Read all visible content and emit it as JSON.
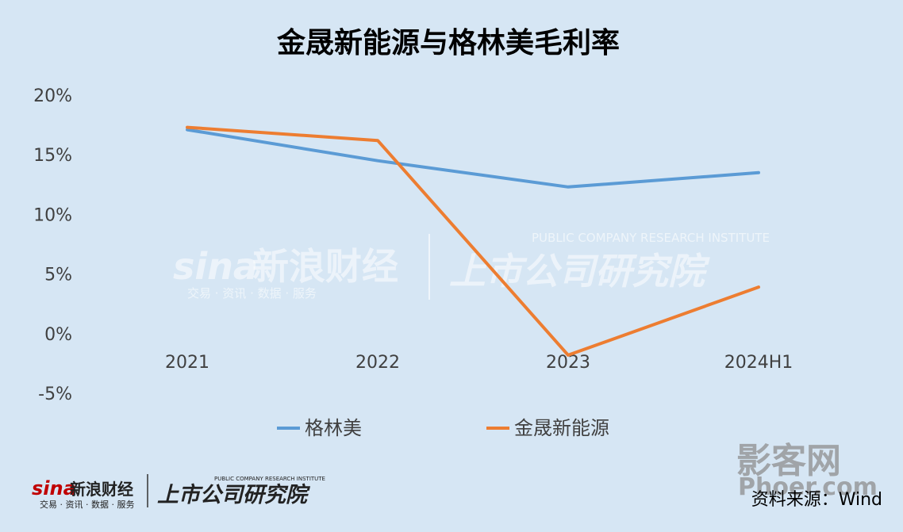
{
  "chart_data": {
    "type": "line",
    "title": "金晟新能源与格林美毛利率",
    "categories": [
      "2021",
      "2022",
      "2023",
      "2024H1"
    ],
    "yticks": [
      "20%",
      "15%",
      "10%",
      "5%",
      "0%",
      "-5%"
    ],
    "ylim": [
      -5,
      20
    ],
    "xlabel": "",
    "ylabel": "",
    "grid": false,
    "legend": "bottom",
    "series": [
      {
        "name": "格林美",
        "values": [
          17.1,
          14.5,
          12.3,
          13.5
        ],
        "color": "#5b9bd5"
      },
      {
        "name": "金晟新能源",
        "values": [
          17.3,
          16.2,
          -1.8,
          3.9
        ],
        "color": "#ed7d31"
      }
    ]
  },
  "watermark": {
    "sina": "sina",
    "sina_brand": "新浪财经",
    "sina_sub": "交易 · 资讯 · 数据 · 服务",
    "institute": "上市公司研究院",
    "institute_en": "PUBLIC COMPANY RESEARCH INSTITUTE"
  },
  "footer": {
    "sina": "sina",
    "sina_brand": "新浪财经",
    "sina_sub": "交易 · 资讯 · 数据 · 服务",
    "institute": "上市公司研究院",
    "institute_en": "PUBLIC COMPANY RESEARCH INSTITUTE",
    "source": "资料来源：Wind"
  },
  "corner_watermark": {
    "line1": "影客网",
    "line2": "Phoer.com"
  },
  "colors": {
    "background": "#d6e6f4",
    "series1": "#5b9bd5",
    "series2": "#ed7d31"
  }
}
